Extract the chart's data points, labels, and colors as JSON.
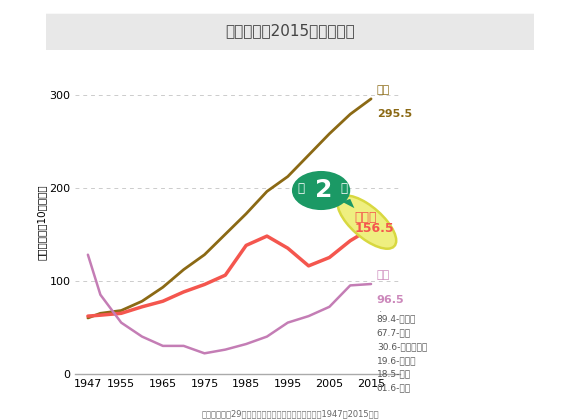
{
  "title": "主な死因と2015年の死亡率",
  "subtitle": "資料：「平成29年我が国の人口動態」厚生労働省（1947～2015年）",
  "ylabel": "死亡率（人口10万人対）",
  "years": [
    1947,
    1950,
    1955,
    1960,
    1965,
    1970,
    1975,
    1980,
    1985,
    1990,
    1995,
    2000,
    2005,
    2010,
    2015
  ],
  "cancer": [
    60,
    65,
    68,
    78,
    93,
    112,
    128,
    150,
    172,
    196,
    212,
    235,
    258,
    279,
    295.5
  ],
  "heart": [
    62,
    63,
    65,
    72,
    78,
    88,
    96,
    106,
    138,
    148,
    135,
    116,
    125,
    143,
    156.5
  ],
  "pneumonia": [
    128,
    85,
    55,
    40,
    30,
    30,
    22,
    26,
    32,
    40,
    55,
    62,
    72,
    95,
    96.5
  ],
  "cancer_color": "#8B6914",
  "heart_color": "#F4564E",
  "pneumonia_color": "#C47DB5",
  "background_color": "#FFFFFF",
  "title_bg_color": "#E8E8E8",
  "grid_color": "#CCCCCC",
  "ylim": [
    0,
    325
  ],
  "xlim": [
    1944,
    2022
  ],
  "xticks": [
    1947,
    1955,
    1965,
    1975,
    1985,
    1995,
    2005,
    2015
  ],
  "yticks": [
    0,
    100,
    200,
    300
  ],
  "cancer_label": "がん",
  "cancer_value": "295.5",
  "heart_label": "心臓病",
  "heart_value": "156.5",
  "pneumonia_label": "肺炎",
  "pneumonia_value": "96.5",
  "others_lines": [
    "89.4-脳卒中",
    "67.7-老衰",
    "30.6-不慮の事故",
    "19.6-腎不全",
    "18.5-自殺",
    "01.6-結核"
  ],
  "green_color": "#1B9965",
  "yellow_color": "#EFEF80",
  "yellow_edge_color": "#D8D840",
  "heart_annot_color": "#F4564E",
  "pneumonia_annot_color": "#CC88BB"
}
